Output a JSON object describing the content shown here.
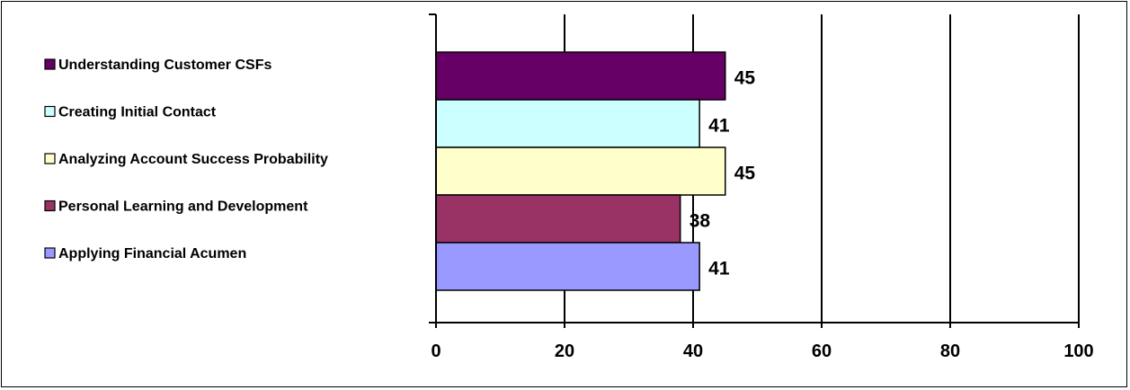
{
  "chart_data": {
    "type": "bar",
    "orientation": "horizontal",
    "categories": [
      "Understanding Customer CSFs",
      "Creating Initial Contact",
      "Analyzing Account Success Probability",
      "Personal Learning and Development",
      "Applying Financial Acumen"
    ],
    "values": [
      45,
      41,
      45,
      38,
      41
    ],
    "colors": [
      "#660066",
      "#CCFFFF",
      "#FFFFCC",
      "#993366",
      "#9999FF"
    ],
    "xlim": [
      0,
      100
    ],
    "xticks": [
      "0",
      "20",
      "40",
      "60",
      "80",
      "100"
    ],
    "grid": true,
    "legend": "left",
    "data_labels": [
      "45",
      "41",
      "45",
      "38",
      "41"
    ]
  }
}
